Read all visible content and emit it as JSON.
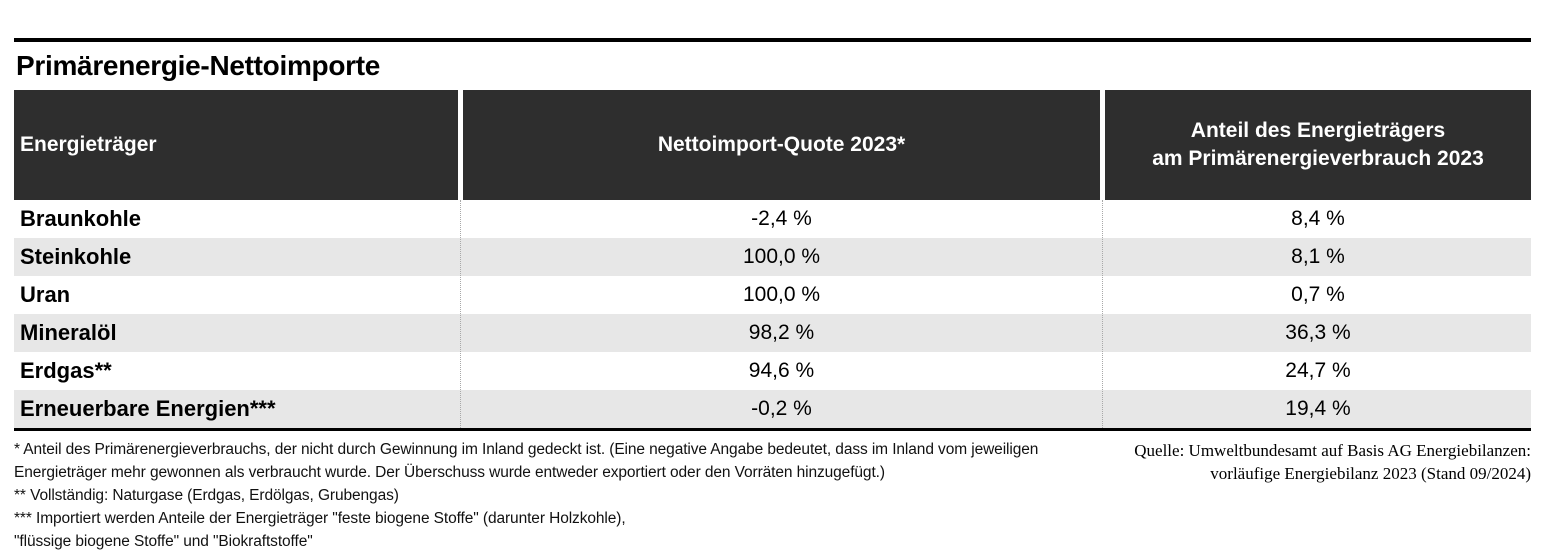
{
  "title": "Primärenergie-Nettoimporte",
  "table": {
    "header": {
      "col1": "Energieträger",
      "col2": "Nettoimport-Quote 2023*",
      "col3_line1": "Anteil des Energieträgers",
      "col3_line2": "am Primärenergieverbrauch 2023"
    },
    "rows": [
      {
        "name": "Braunkohle",
        "quote": "-2,4 %",
        "share": "8,4 %"
      },
      {
        "name": "Steinkohle",
        "quote": "100,0 %",
        "share": "8,1 %"
      },
      {
        "name": "Uran",
        "quote": "100,0 %",
        "share": "0,7 %"
      },
      {
        "name": "Mineralöl",
        "quote": "98,2 %",
        "share": "36,3 %"
      },
      {
        "name": "Erdgas**",
        "quote": "94,6 %",
        "share": "24,7 %"
      },
      {
        "name": "Erneuerbare Energien***",
        "quote": "-0,2 %",
        "share": "19,4 %"
      }
    ]
  },
  "footnotes": {
    "lines": [
      "* Anteil des Primärenergieverbrauchs, der nicht durch Gewinnung im Inland gedeckt ist. (Eine negative Angabe bedeutet, dass im Inland vom jeweiligen",
      "Energieträger mehr gewonnen als verbraucht wurde. Der Überschuss wurde entweder exportiert oder den Vorräten hinzugefügt.)",
      "**  Vollständig: Naturgase (Erdgas, Erdölgas, Grubengas)",
      "*** Importiert werden Anteile der Energieträger \"feste biogene Stoffe\" (darunter Holzkohle),",
      "\"flüssige biogene Stoffe\" und \"Biokraftstoffe\""
    ]
  },
  "source": {
    "line1": "Quelle: Umweltbundesamt auf Basis AG Energiebilanzen:",
    "line2": "vorläufige Energiebilanz 2023 (Stand 09/2024)"
  },
  "colors": {
    "header_bg": "#2e2e2e",
    "header_text": "#ffffff",
    "row_alt_bg": "#e7e7e7",
    "rule": "#000000"
  },
  "chart_data": {
    "type": "table",
    "title": "Primärenergie-Nettoimporte",
    "columns": [
      "Energieträger",
      "Nettoimport-Quote 2023*",
      "Anteil des Energieträgers am Primärenergieverbrauch 2023"
    ],
    "rows": [
      {
        "energietraeger": "Braunkohle",
        "nettoimport_quote_2023_pct": -2.4,
        "anteil_primaerenergieverbrauch_2023_pct": 8.4
      },
      {
        "energietraeger": "Steinkohle",
        "nettoimport_quote_2023_pct": 100.0,
        "anteil_primaerenergieverbrauch_2023_pct": 8.1
      },
      {
        "energietraeger": "Uran",
        "nettoimport_quote_2023_pct": 100.0,
        "anteil_primaerenergieverbrauch_2023_pct": 0.7
      },
      {
        "energietraeger": "Mineralöl",
        "nettoimport_quote_2023_pct": 98.2,
        "anteil_primaerenergieverbrauch_2023_pct": 36.3
      },
      {
        "energietraeger": "Erdgas**",
        "nettoimport_quote_2023_pct": 94.6,
        "anteil_primaerenergieverbrauch_2023_pct": 24.7
      },
      {
        "energietraeger": "Erneuerbare Energien***",
        "nettoimport_quote_2023_pct": -0.2,
        "anteil_primaerenergieverbrauch_2023_pct": 19.4
      }
    ]
  }
}
